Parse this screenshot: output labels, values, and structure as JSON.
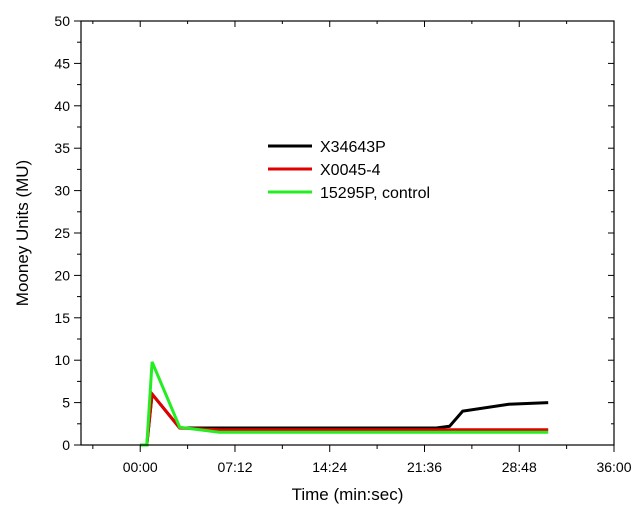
{
  "chart_data": {
    "type": "line",
    "xlabel": "Time (min:sec)",
    "ylabel": "Mooney Units (MU)",
    "xlim": [
      -4.5,
      36
    ],
    "ylim": [
      0,
      50
    ],
    "x_unit": "minutes",
    "x_ticks": [
      {
        "value": 0,
        "label": "00:00"
      },
      {
        "value": 7.2,
        "label": "07:12"
      },
      {
        "value": 14.4,
        "label": "14:24"
      },
      {
        "value": 21.6,
        "label": "21:36"
      },
      {
        "value": 28.8,
        "label": "28:48"
      },
      {
        "value": 36,
        "label": "36:00"
      }
    ],
    "y_ticks": [
      0,
      5,
      10,
      15,
      20,
      25,
      30,
      35,
      40,
      45,
      50
    ],
    "grid": false,
    "legend_position": "center-top",
    "series": [
      {
        "name": "X34643P",
        "color": "#000000",
        "points": [
          [
            0,
            0
          ],
          [
            0.5,
            0
          ],
          [
            0.9,
            6
          ],
          [
            3,
            2
          ],
          [
            6,
            2
          ],
          [
            22.5,
            2
          ],
          [
            23.5,
            2.2
          ],
          [
            24.5,
            4
          ],
          [
            28,
            4.8
          ],
          [
            31,
            5
          ]
        ]
      },
      {
        "name": "X0045-4",
        "color": "#e00000",
        "points": [
          [
            0,
            0
          ],
          [
            0.5,
            0
          ],
          [
            0.9,
            6
          ],
          [
            3,
            2
          ],
          [
            6,
            1.8
          ],
          [
            31,
            1.8
          ]
        ]
      },
      {
        "name": "15295P, control",
        "color": "#22ee22",
        "points": [
          [
            0,
            0
          ],
          [
            0.5,
            0
          ],
          [
            0.9,
            9.8
          ],
          [
            3,
            2.1
          ],
          [
            6,
            1.5
          ],
          [
            31,
            1.5
          ]
        ]
      }
    ]
  }
}
